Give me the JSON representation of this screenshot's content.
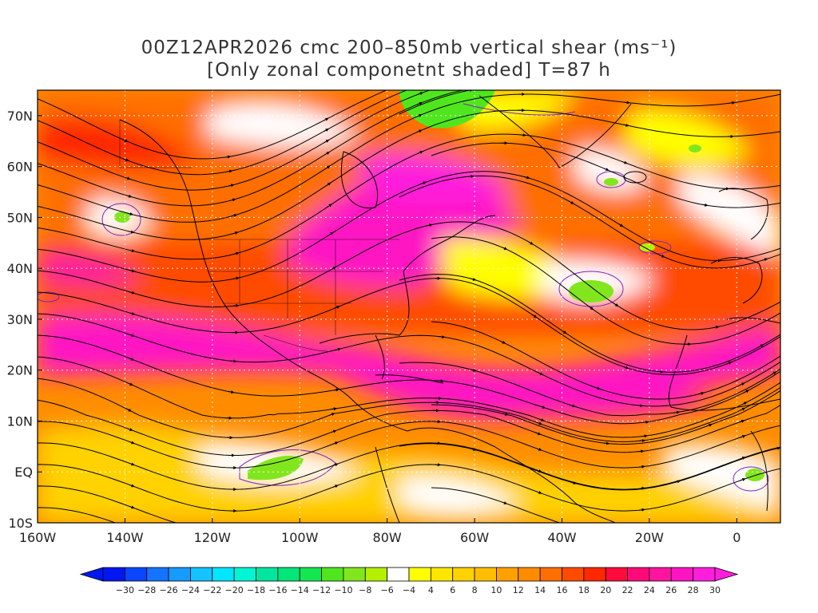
{
  "title": {
    "line1": "00Z12APR2026 cmc 200–850mb vertical shear (ms⁻¹)",
    "line2": "[Only zonal componetnt shaded] T=87 h"
  },
  "map": {
    "lon_range": [
      -160,
      10
    ],
    "lat_range": [
      -10,
      75
    ],
    "lat_labels": [
      "10S",
      "EQ",
      "10N",
      "20N",
      "30N",
      "40N",
      "50N",
      "60N",
      "70N"
    ],
    "lat_values": [
      -10,
      0,
      10,
      20,
      30,
      40,
      50,
      60,
      70
    ],
    "lon_labels": [
      "160W",
      "140W",
      "120W",
      "100W",
      "80W",
      "60W",
      "40W",
      "20W",
      "0"
    ],
    "lon_values": [
      -160,
      -140,
      -120,
      -100,
      -80,
      -60,
      -40,
      -20,
      0
    ],
    "grid": "dotted",
    "coastlines": true,
    "streamlines": true
  },
  "colorbar": {
    "labels": [
      "-30",
      "-28",
      "-26",
      "-24",
      "-22",
      "-20",
      "-18",
      "-16",
      "-14",
      "-12",
      "-10",
      "-8",
      "-6",
      "-4",
      "4",
      "6",
      "8",
      "10",
      "12",
      "14",
      "16",
      "18",
      "20",
      "22",
      "24",
      "26",
      "28",
      "30"
    ],
    "colors": [
      "#0018f0",
      "#0a46ff",
      "#1473ff",
      "#169bff",
      "#14c3ff",
      "#00e6ff",
      "#00f5d4",
      "#00e6a0",
      "#00e678",
      "#14e650",
      "#50e61e",
      "#82e61e",
      "#b4f000",
      "#ffffff",
      "#ffff00",
      "#ffe600",
      "#ffd200",
      "#ffbe00",
      "#ffa000",
      "#ff8c00",
      "#ff6e00",
      "#ff4b00",
      "#ff2800",
      "#ff0a3c",
      "#ff0a78",
      "#ff14a0",
      "#ff14c3",
      "#ff1edc"
    ]
  }
}
